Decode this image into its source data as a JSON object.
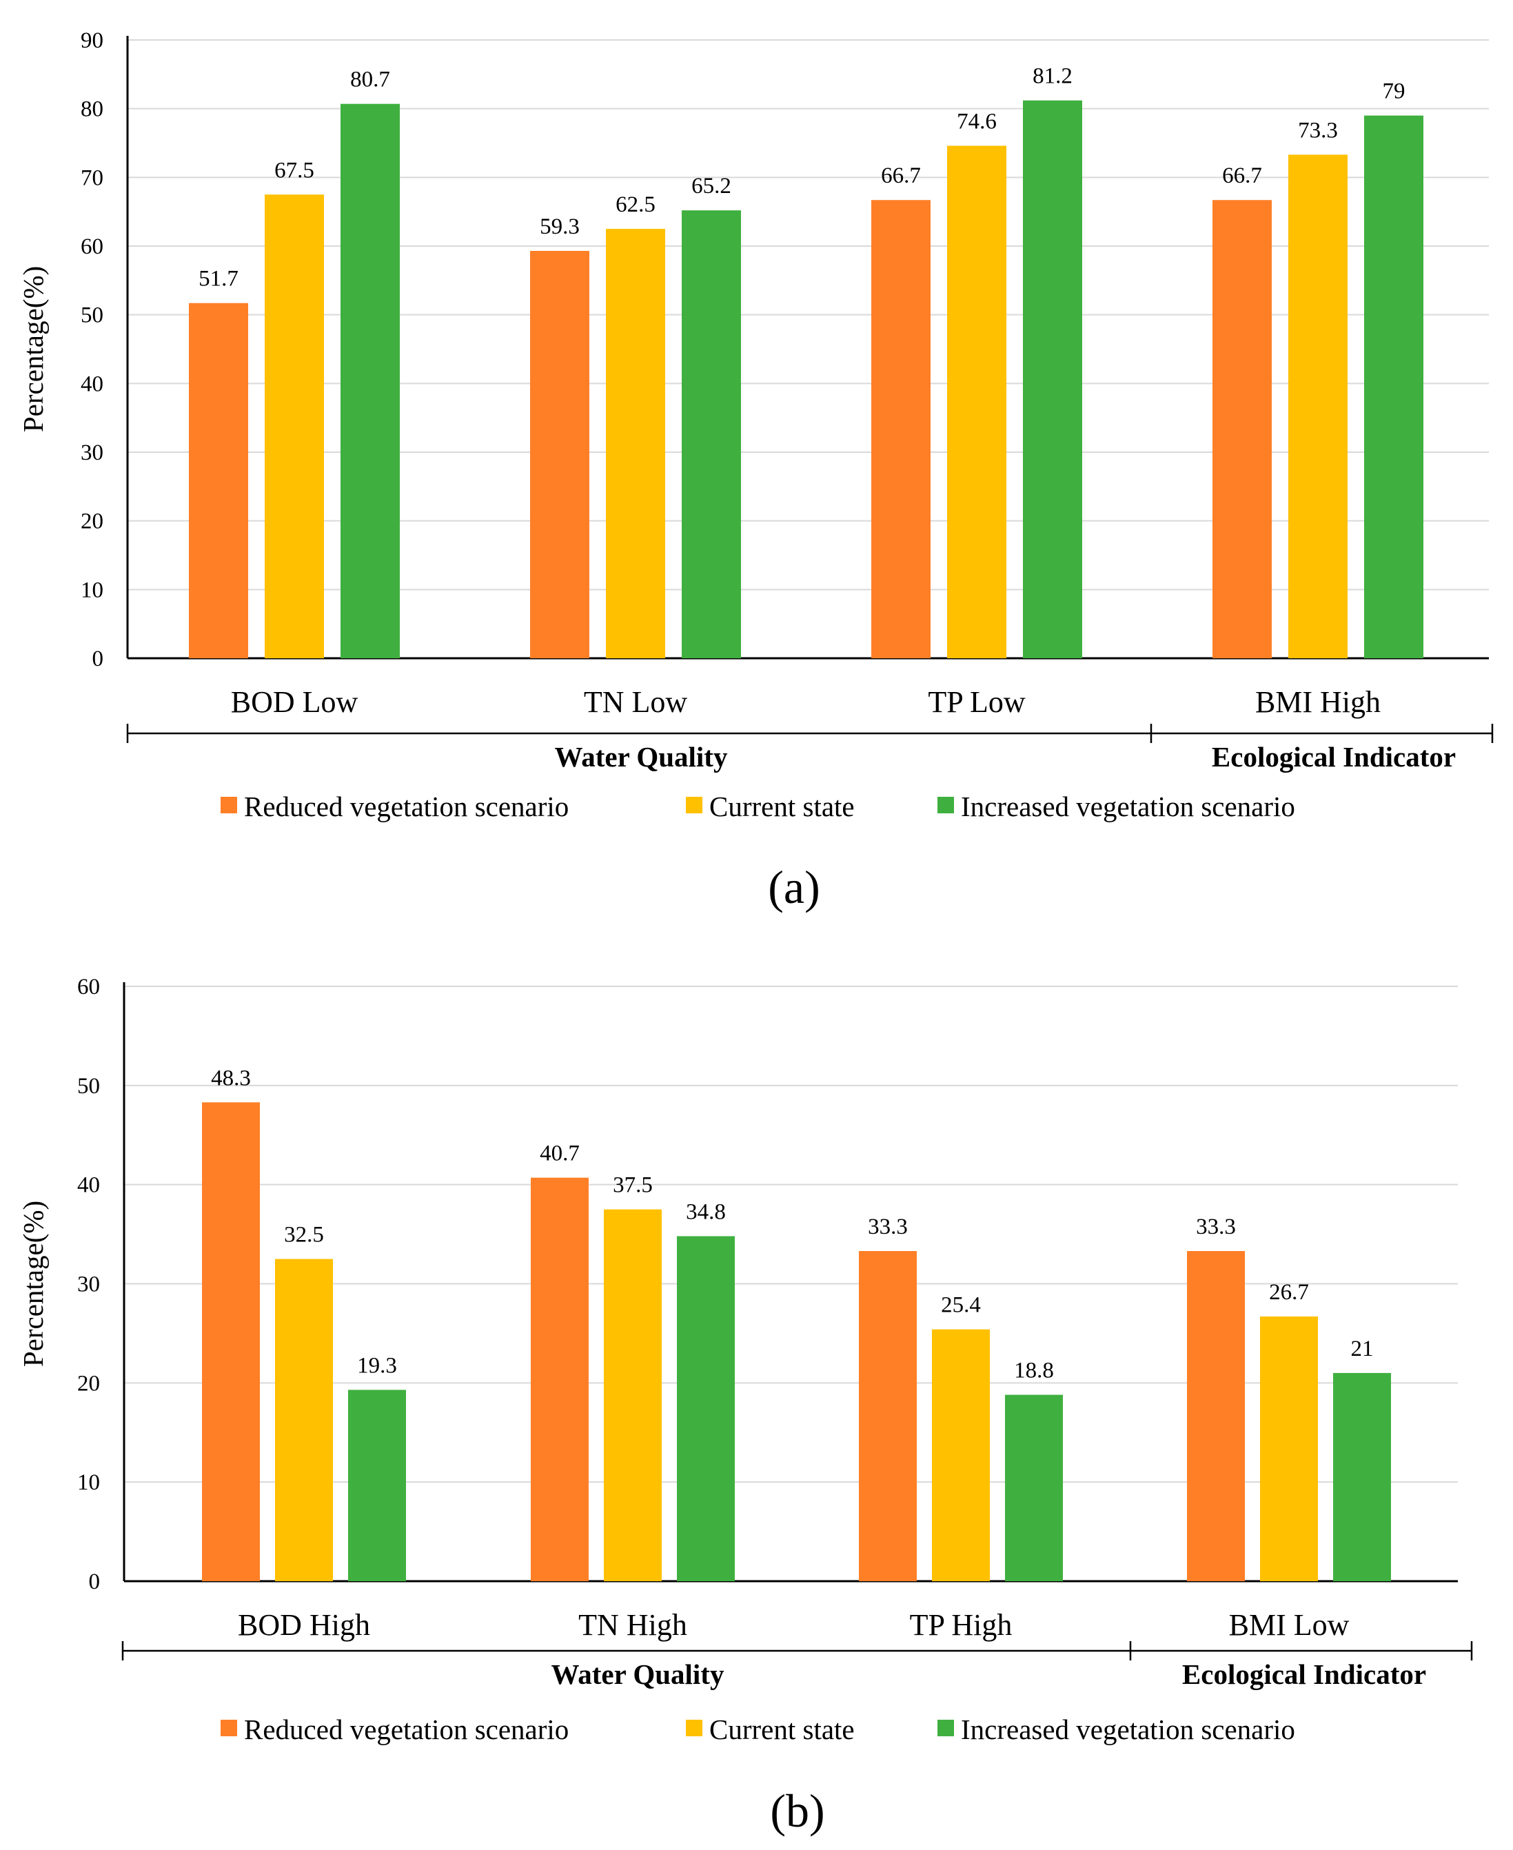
{
  "chart_data": [
    {
      "type": "bar",
      "panel_label": "(a)",
      "ylabel": "Percentage(%)",
      "ylim": [
        0,
        90
      ],
      "yticks": [
        0,
        10,
        20,
        30,
        40,
        50,
        60,
        70,
        80,
        90
      ],
      "grid": true,
      "categories": [
        "BOD Low",
        "TN Low",
        "TP Low",
        "BMI High"
      ],
      "series": [
        {
          "name": "Reduced vegetation scenario",
          "color": "#FF7F27",
          "values": [
            51.7,
            59.3,
            66.7,
            66.7
          ]
        },
        {
          "name": "Current state",
          "color": "#FFC000",
          "values": [
            67.5,
            62.5,
            74.6,
            73.3
          ]
        },
        {
          "name": "Increased vegetation scenario",
          "color": "#3FB03F",
          "values": [
            80.7,
            65.2,
            81.2,
            79
          ]
        }
      ],
      "groups": [
        {
          "label": "Water Quality",
          "categories": [
            "BOD Low",
            "TN Low",
            "TP Low"
          ]
        },
        {
          "label": "Ecological Indicator",
          "categories": [
            "BMI High"
          ]
        }
      ],
      "legend_position": "bottom"
    },
    {
      "type": "bar",
      "panel_label": "(b)",
      "ylabel": "Percentage(%)",
      "ylim": [
        0,
        60
      ],
      "yticks": [
        0,
        10,
        20,
        30,
        40,
        50,
        60
      ],
      "grid": true,
      "categories": [
        "BOD High",
        "TN High",
        "TP High",
        "BMI Low"
      ],
      "series": [
        {
          "name": "Reduced vegetation scenario",
          "color": "#FF7F27",
          "values": [
            48.3,
            40.7,
            33.3,
            33.3
          ]
        },
        {
          "name": "Current state",
          "color": "#FFC000",
          "values": [
            32.5,
            37.5,
            25.4,
            26.7
          ]
        },
        {
          "name": "Increased vegetation scenario",
          "color": "#3FB03F",
          "values": [
            19.3,
            34.8,
            18.8,
            21
          ]
        }
      ],
      "groups": [
        {
          "label": "Water Quality",
          "categories": [
            "BOD High",
            "TN High",
            "TP High"
          ]
        },
        {
          "label": "Ecological Indicator",
          "categories": [
            "BMI Low"
          ]
        }
      ],
      "legend_position": "bottom"
    }
  ]
}
